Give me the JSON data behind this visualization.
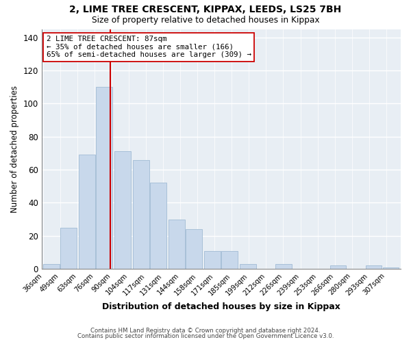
{
  "title": "2, LIME TREE CRESCENT, KIPPAX, LEEDS, LS25 7BH",
  "subtitle": "Size of property relative to detached houses in Kippax",
  "xlabel": "Distribution of detached houses by size in Kippax",
  "ylabel": "Number of detached properties",
  "bar_color": "#c8d8eb",
  "bar_edgecolor": "#a8c0d8",
  "vline_x": 87,
  "vline_color": "#cc0000",
  "annotation_title": "2 LIME TREE CRESCENT: 87sqm",
  "annotation_line1": "← 35% of detached houses are smaller (166)",
  "annotation_line2": "65% of semi-detached houses are larger (309) →",
  "bins_left": [
    36,
    49,
    63,
    76,
    90,
    104,
    117,
    131,
    144,
    158,
    171,
    185,
    199,
    212,
    226,
    239,
    253,
    266,
    280,
    293
  ],
  "bin_width": 13,
  "heights": [
    3,
    25,
    69,
    110,
    71,
    66,
    52,
    30,
    24,
    11,
    11,
    3,
    0,
    3,
    0,
    0,
    2,
    0,
    2,
    1
  ],
  "tick_labels": [
    "36sqm",
    "49sqm",
    "63sqm",
    "76sqm",
    "90sqm",
    "104sqm",
    "117sqm",
    "131sqm",
    "144sqm",
    "158sqm",
    "171sqm",
    "185sqm",
    "199sqm",
    "212sqm",
    "226sqm",
    "239sqm",
    "253sqm",
    "266sqm",
    "280sqm",
    "293sqm",
    "307sqm"
  ],
  "ylim": [
    0,
    145
  ],
  "yticks": [
    0,
    20,
    40,
    60,
    80,
    100,
    120,
    140
  ],
  "footer1": "Contains HM Land Registry data © Crown copyright and database right 2024.",
  "footer2": "Contains public sector information licensed under the Open Government Licence v3.0.",
  "background_color": "#ffffff",
  "plot_bg_color": "#e8eef4"
}
